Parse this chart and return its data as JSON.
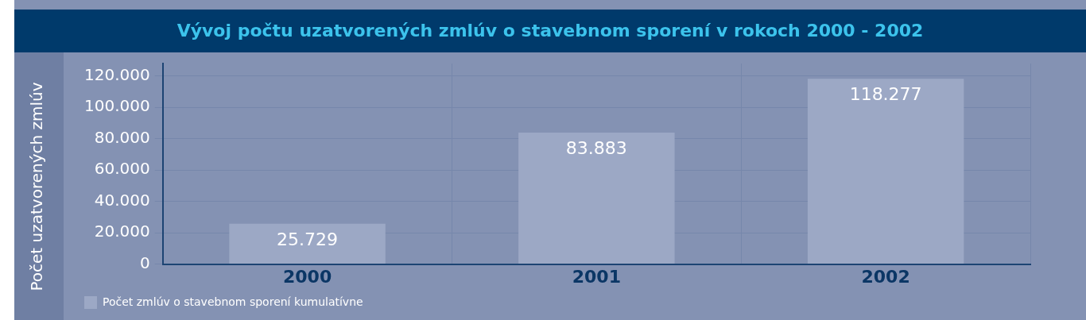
{
  "chart_data": {
    "type": "bar",
    "title": "Vývoj počtu uzatvorených zmlúv o stavebnom sporení v rokoch 2000 - 2002",
    "ylabel": "Počet uzatvorených zmlúv",
    "categories": [
      "2000",
      "2001",
      "2002"
    ],
    "series": [
      {
        "name": "Počet zmlúv o stavebnom sporení kumulatívne",
        "color": "#9ca8c5",
        "values": [
          25729,
          83883,
          118277
        ],
        "value_labels": [
          "25.729",
          "83.883",
          "118.277"
        ]
      }
    ],
    "ylim": [
      0,
      128000
    ],
    "yticks": [
      {
        "value": 0,
        "label": "0"
      },
      {
        "value": 20000,
        "label": "20.000"
      },
      {
        "value": 40000,
        "label": "40.000"
      },
      {
        "value": 60000,
        "label": "60.000"
      },
      {
        "value": 80000,
        "label": "80.000"
      },
      {
        "value": 100000,
        "label": "100.000"
      },
      {
        "value": 120000,
        "label": "120.000"
      }
    ],
    "grid": true,
    "legend": "bottom left"
  }
}
